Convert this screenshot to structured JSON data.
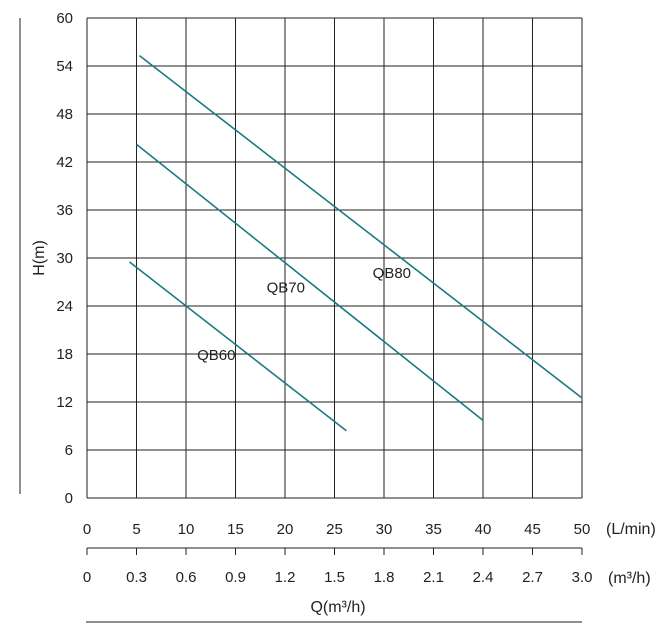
{
  "chart_data": {
    "type": "line",
    "ylabel": "H(m)",
    "xlabel": "Q(m³/h)",
    "ylim": [
      0,
      60
    ],
    "y_ticks": [
      "0",
      "6",
      "12",
      "18",
      "24",
      "30",
      "36",
      "42",
      "48",
      "54",
      "60"
    ],
    "x_lpm_ticks": [
      "0",
      "5",
      "10",
      "15",
      "20",
      "25",
      "30",
      "35",
      "40",
      "45",
      "50"
    ],
    "x_lpm_unit": "(L/min)",
    "x_m3h_ticks": [
      "0",
      "0.3",
      "0.6",
      "0.9",
      "1.2",
      "1.5",
      "1.8",
      "2.1",
      "2.4",
      "2.7",
      "3.0"
    ],
    "x_m3h_unit": "(m³/h)",
    "xlim_lpm": [
      0,
      50
    ],
    "grid": true,
    "series_color": "#1a7a80",
    "series": [
      {
        "name": "QB60",
        "x": [
          4.3,
          26.2
        ],
        "y": [
          29.5,
          8.4
        ]
      },
      {
        "name": "QB70",
        "x": [
          5.0,
          40.0
        ],
        "y": [
          44.2,
          9.7
        ]
      },
      {
        "name": "QB80",
        "x": [
          5.3,
          50.0
        ],
        "y": [
          55.3,
          12.5
        ]
      }
    ]
  }
}
